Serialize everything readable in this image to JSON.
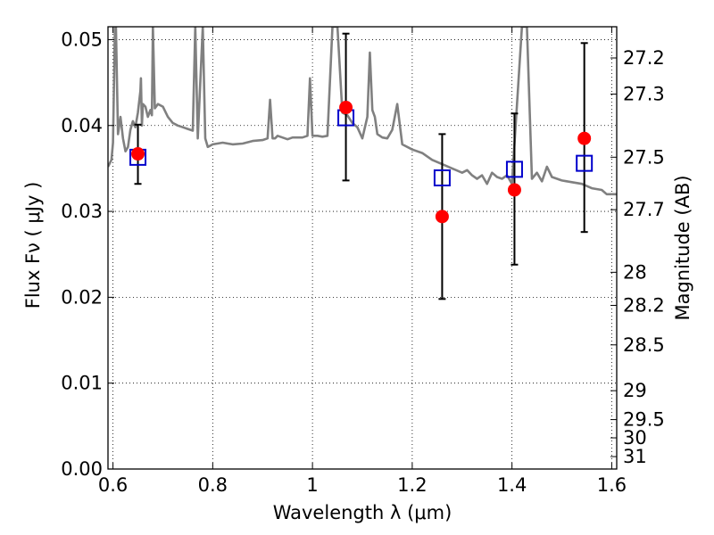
{
  "chart_data": {
    "type": "scatter",
    "xlabel": "Wavelength  λ (μm)",
    "ylabel_left": "Flux  Fν  ( μJy )",
    "ylabel_right": "Magnitude (AB)",
    "xlim": [
      0.59,
      1.61
    ],
    "ylim": [
      0.0,
      0.0515
    ],
    "grid": true,
    "x_ticks": [
      0.6,
      0.8,
      1.0,
      1.2,
      1.4,
      1.6
    ],
    "x_tick_labels": [
      "0.6",
      "0.8",
      "1",
      "1.2",
      "1.4",
      "1.6"
    ],
    "y_ticks": [
      0.0,
      0.01,
      0.02,
      0.03,
      0.04,
      0.05
    ],
    "y_tick_labels": [
      "0.00",
      "0.01",
      "0.02",
      "0.03",
      "0.04",
      "0.05"
    ],
    "mag_ticks": [
      27.2,
      27.3,
      27.5,
      27.7,
      28,
      28.2,
      28.5,
      29,
      29.5,
      30,
      31
    ],
    "mag_tick_labels": [
      "27.2",
      "27.3",
      "27.5",
      "27.7",
      "28",
      "28.2",
      "28.5",
      "29",
      "29.5",
      "30",
      "31"
    ],
    "observed": {
      "color": "#ff0000",
      "x": [
        0.65,
        1.067,
        1.26,
        1.405,
        1.545
      ],
      "y": [
        0.0367,
        0.0421,
        0.0294,
        0.0325,
        0.0385
      ]
    },
    "errorbars": {
      "color": "#000000",
      "x": [
        0.65,
        1.067,
        1.26,
        1.405,
        1.545
      ],
      "low": [
        0.0332,
        0.0336,
        0.0198,
        0.0238,
        0.0276
      ],
      "high": [
        0.0401,
        0.0507,
        0.039,
        0.0414,
        0.0496
      ]
    },
    "model_photometry": {
      "color": "#0000cc",
      "x": [
        0.65,
        1.067,
        1.26,
        1.405,
        1.545
      ],
      "y": [
        0.0363,
        0.0409,
        0.0339,
        0.0349,
        0.0356
      ]
    },
    "model_spectrum": {
      "color": "#808080",
      "x": [
        0.59,
        0.597,
        0.6,
        0.604,
        0.606,
        0.61,
        0.615,
        0.62,
        0.625,
        0.63,
        0.635,
        0.64,
        0.645,
        0.65,
        0.655,
        0.656,
        0.658,
        0.66,
        0.665,
        0.67,
        0.675,
        0.678,
        0.68,
        0.684,
        0.69,
        0.7,
        0.71,
        0.72,
        0.73,
        0.74,
        0.75,
        0.76,
        0.765,
        0.77,
        0.78,
        0.785,
        0.79,
        0.8,
        0.82,
        0.84,
        0.86,
        0.88,
        0.9,
        0.91,
        0.915,
        0.92,
        0.925,
        0.93,
        0.95,
        0.96,
        0.98,
        0.99,
        0.995,
        1.0,
        1.01,
        1.02,
        1.03,
        1.04,
        1.05,
        1.06,
        1.07,
        1.08,
        1.09,
        1.1,
        1.11,
        1.115,
        1.12,
        1.125,
        1.13,
        1.14,
        1.15,
        1.16,
        1.17,
        1.18,
        1.2,
        1.22,
        1.24,
        1.26,
        1.28,
        1.3,
        1.31,
        1.32,
        1.33,
        1.34,
        1.35,
        1.36,
        1.37,
        1.38,
        1.39,
        1.4,
        1.42,
        1.43,
        1.44,
        1.45,
        1.46,
        1.47,
        1.48,
        1.5,
        1.52,
        1.54,
        1.56,
        1.58,
        1.59,
        1.61
      ],
      "y": [
        0.0352,
        0.036,
        0.038,
        0.0515,
        0.0515,
        0.039,
        0.041,
        0.0385,
        0.037,
        0.0375,
        0.0395,
        0.0405,
        0.0398,
        0.0415,
        0.044,
        0.0455,
        0.04,
        0.0425,
        0.0422,
        0.041,
        0.0418,
        0.0412,
        0.0515,
        0.042,
        0.0425,
        0.0422,
        0.041,
        0.0403,
        0.04,
        0.0398,
        0.0396,
        0.0394,
        0.0515,
        0.0385,
        0.0515,
        0.0385,
        0.0375,
        0.0378,
        0.038,
        0.0378,
        0.0379,
        0.0382,
        0.0383,
        0.0385,
        0.043,
        0.0385,
        0.0385,
        0.0388,
        0.0384,
        0.0386,
        0.0386,
        0.0388,
        0.0455,
        0.0388,
        0.0388,
        0.0387,
        0.0388,
        0.0515,
        0.0515,
        0.0415,
        0.0412,
        0.0403,
        0.0398,
        0.0385,
        0.041,
        0.0485,
        0.0418,
        0.041,
        0.039,
        0.0386,
        0.0385,
        0.0395,
        0.0425,
        0.0378,
        0.0372,
        0.0368,
        0.036,
        0.0355,
        0.035,
        0.0345,
        0.0348,
        0.0342,
        0.0338,
        0.0342,
        0.0332,
        0.0345,
        0.034,
        0.0338,
        0.0342,
        0.0332,
        0.0515,
        0.0515,
        0.0338,
        0.0345,
        0.0335,
        0.0352,
        0.034,
        0.0336,
        0.0334,
        0.0332,
        0.0327,
        0.0325,
        0.032,
        0.032
      ]
    }
  }
}
